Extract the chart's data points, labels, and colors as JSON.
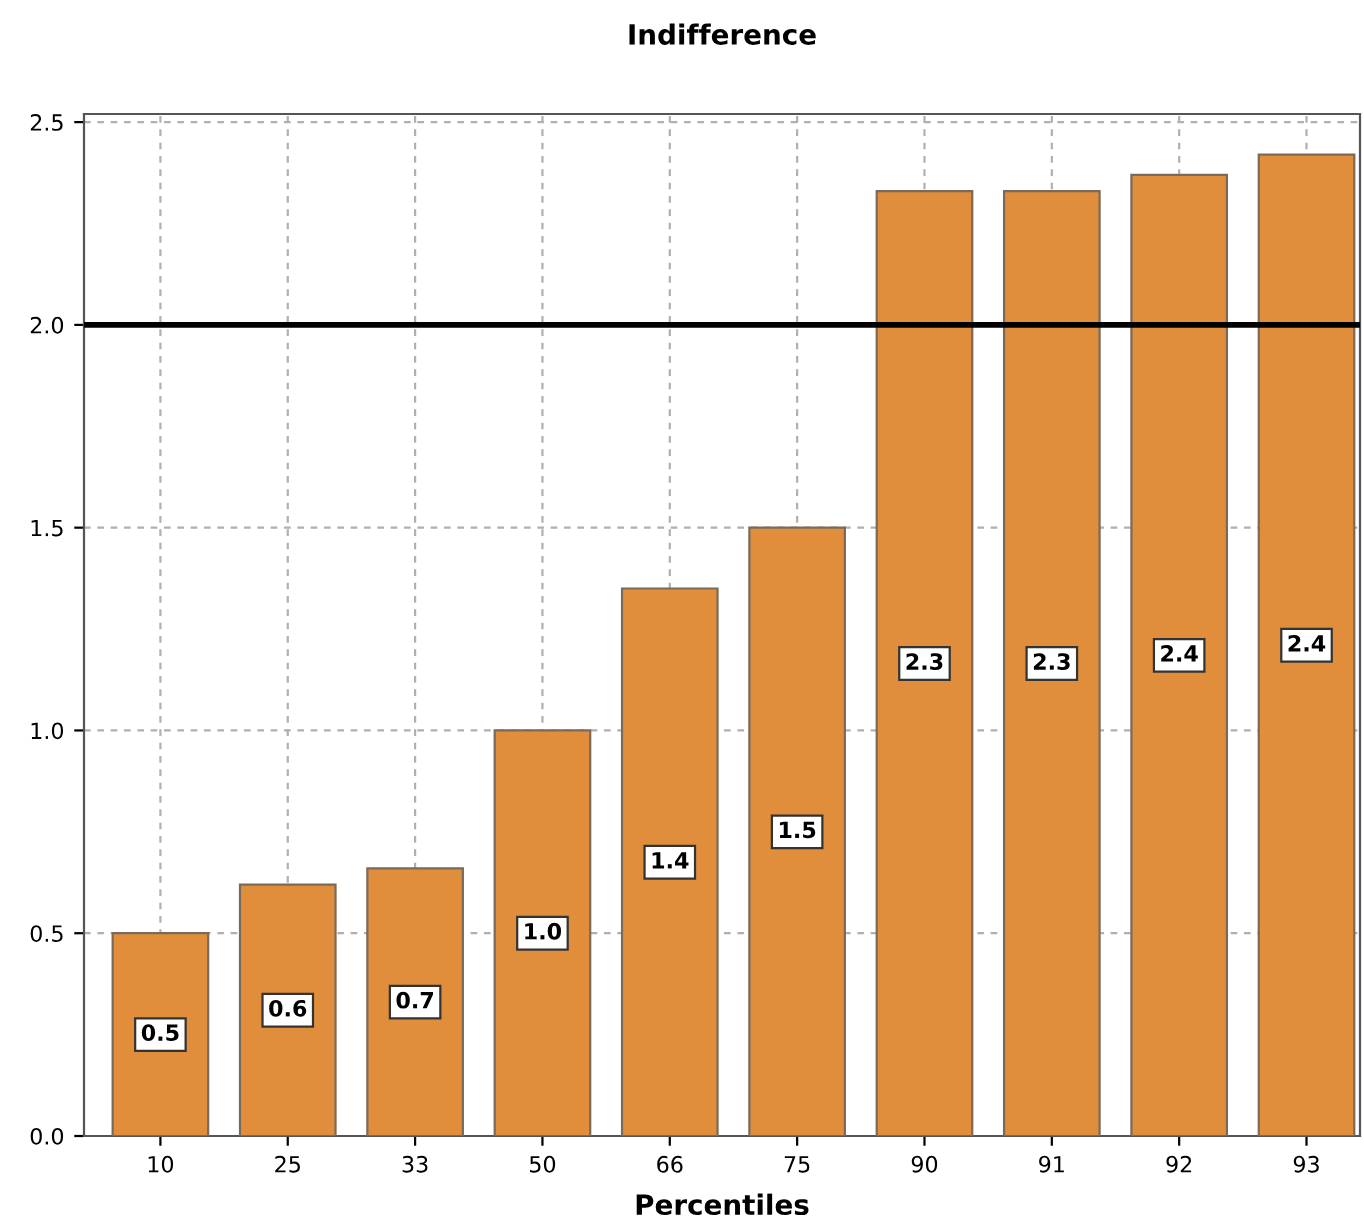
{
  "chart_data": {
    "type": "bar",
    "title": "Indifference",
    "xlabel": "Percentiles",
    "categories": [
      "10",
      "25",
      "33",
      "50",
      "66",
      "75",
      "90",
      "91",
      "92",
      "93"
    ],
    "values": [
      0.5,
      0.62,
      0.66,
      1.0,
      1.35,
      1.5,
      2.33,
      2.33,
      2.37,
      2.42
    ],
    "value_labels": [
      "0.5",
      "0.6",
      "0.7",
      "1.0",
      "1.4",
      "1.5",
      "2.3",
      "2.3",
      "2.4",
      "2.4"
    ],
    "color": "#e08e3c",
    "ylim": [
      0,
      2.52
    ],
    "yticks": [
      {
        "value": 0,
        "label": "0.0"
      },
      {
        "value": 0.5,
        "label": "0.5"
      },
      {
        "value": 1.0,
        "label": "1.0"
      },
      {
        "value": 1.5,
        "label": "1.5"
      },
      {
        "value": 2.0,
        "label": "2.0"
      },
      {
        "value": 2.5,
        "label": "2.5"
      }
    ],
    "ref_lines": [
      {
        "axis": "y",
        "value": 2.0,
        "color": "#000000",
        "line_style": "solid"
      }
    ],
    "grid": true
  }
}
